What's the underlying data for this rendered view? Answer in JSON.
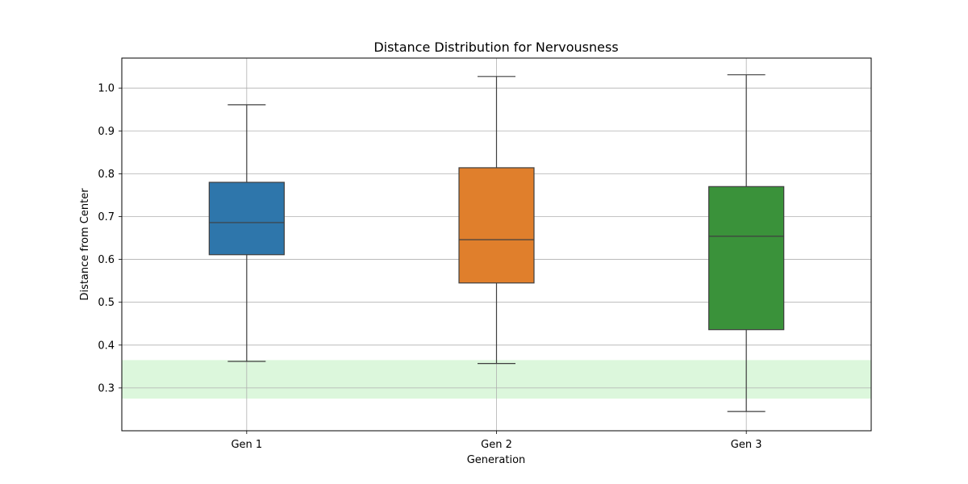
{
  "chart_data": {
    "type": "box",
    "title": "Distance Distribution for Nervousness",
    "xlabel": "Generation",
    "ylabel": "Distance from Center",
    "ylim": [
      0.2,
      1.07
    ],
    "yticks": [
      "0.3",
      "0.4",
      "0.5",
      "0.6",
      "0.7",
      "0.8",
      "0.9",
      "1.0"
    ],
    "grid": true,
    "categories": [
      "Gen 1",
      "Gen 2",
      "Gen 3"
    ],
    "boxes": [
      {
        "category": "Gen 1",
        "whisker_low": 0.362,
        "q1": 0.611,
        "median": 0.686,
        "q3": 0.78,
        "whisker_high": 0.961,
        "color": "#2e76ab"
      },
      {
        "category": "Gen 2",
        "whisker_low": 0.357,
        "q1": 0.545,
        "median": 0.646,
        "q3": 0.814,
        "whisker_high": 1.027,
        "color": "#e07f2c"
      },
      {
        "category": "Gen 3",
        "whisker_low": 0.245,
        "q1": 0.436,
        "median": 0.654,
        "q3": 0.77,
        "whisker_high": 1.031,
        "color": "#3a923a"
      }
    ],
    "shaded_band": {
      "ymin": 0.275,
      "ymax": 0.365,
      "color": "#dcf7dc"
    }
  }
}
